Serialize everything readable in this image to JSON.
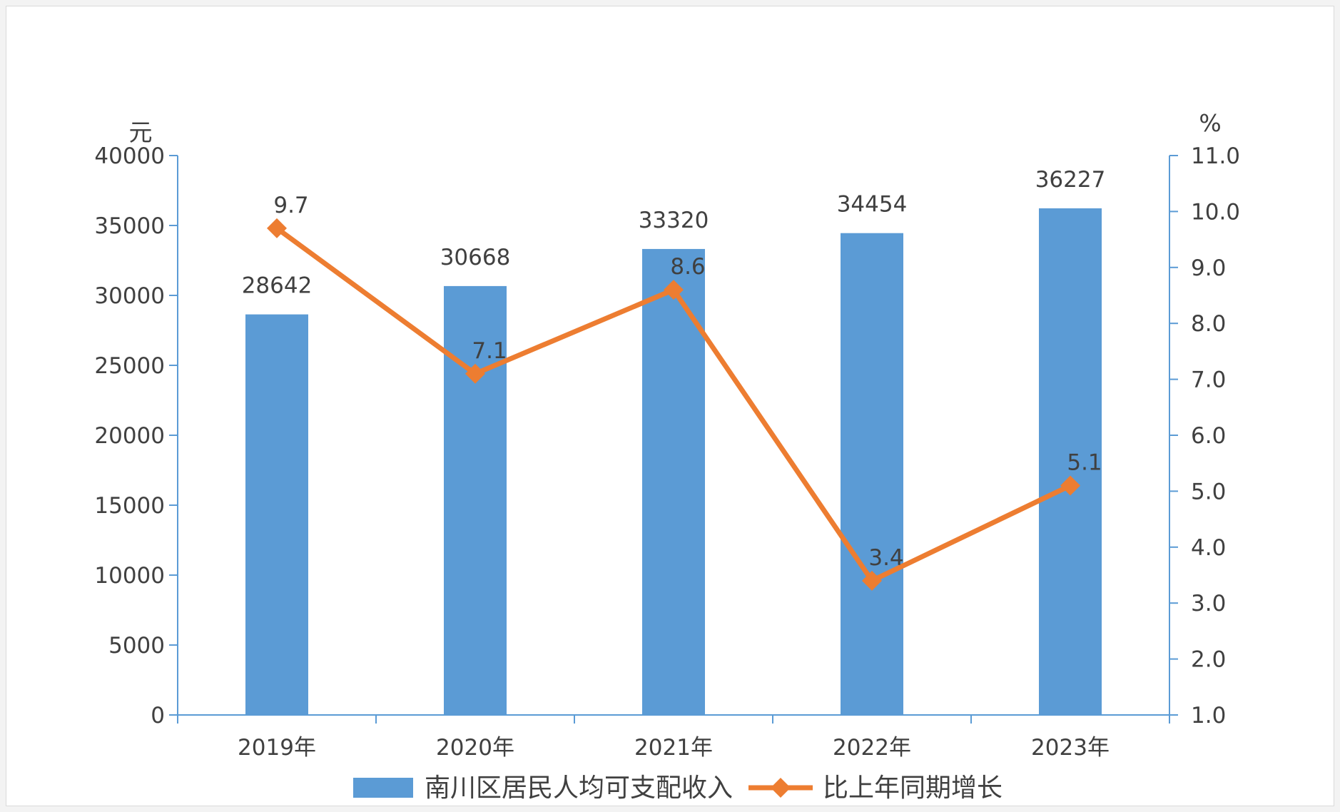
{
  "chart_data": {
    "type": "bar+line",
    "categories": [
      "2019年",
      "2020年",
      "2021年",
      "2022年",
      "2023年"
    ],
    "series": [
      {
        "name": "南川区居民人均可支配收入",
        "type": "bar",
        "axis": "left",
        "values": [
          28642,
          30668,
          33320,
          34454,
          36227
        ],
        "labels": [
          "28642",
          "30668",
          "33320",
          "34454",
          "36227"
        ]
      },
      {
        "name": "比上年同期增长",
        "type": "line",
        "axis": "right",
        "values": [
          9.7,
          7.1,
          8.6,
          3.4,
          5.1
        ],
        "labels": [
          "9.7",
          "7.1",
          "8.6",
          "3.4",
          "5.1"
        ]
      }
    ],
    "y_left": {
      "unit": "元",
      "min": 0,
      "max": 40000,
      "ticks": [
        "0",
        "5000",
        "10000",
        "15000",
        "20000",
        "25000",
        "30000",
        "35000",
        "40000"
      ]
    },
    "y_right": {
      "unit": "%",
      "min": 1.0,
      "max": 11.0,
      "ticks": [
        "1.0",
        "2.0",
        "3.0",
        "4.0",
        "5.0",
        "6.0",
        "7.0",
        "8.0",
        "9.0",
        "10.0",
        "11.0"
      ]
    },
    "grid": false,
    "legend_position": "bottom",
    "colors": {
      "bar": "#5b9bd5",
      "line": "#ed7d31",
      "axis": "#5b9bd5"
    }
  }
}
